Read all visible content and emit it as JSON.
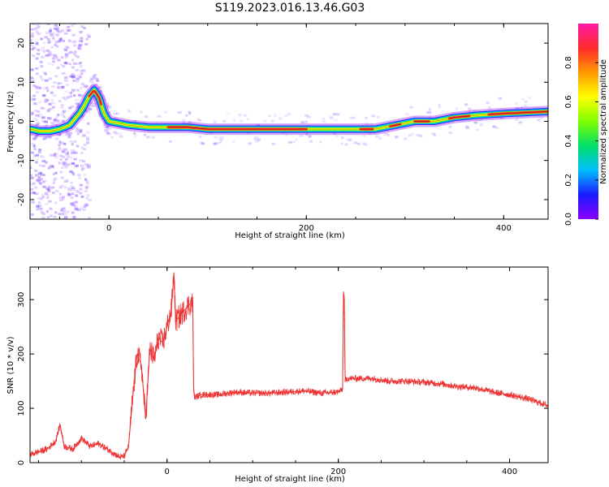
{
  "title": "S119.2023.016.13.46.G03",
  "colors": {
    "snr_line": "#ee3333",
    "axis": "#000000",
    "colormap": [
      "#8a00ff",
      "#1a1aff",
      "#00bfff",
      "#00e06a",
      "#7fff00",
      "#ffff00",
      "#ff9900",
      "#ff2a2a",
      "#ff1aa8"
    ]
  },
  "chart_data": [
    {
      "type": "heatmap",
      "xlabel": "Height of straight line (km)",
      "ylabel": "Frequency (Hz)",
      "xlim": [
        -80,
        445
      ],
      "ylim": [
        -25,
        25
      ],
      "xticks": [
        0,
        200,
        400
      ],
      "yticks": [
        -20,
        -10,
        0,
        10,
        20
      ],
      "grid": false,
      "ridge": {
        "x": [
          -80,
          -70,
          -60,
          -50,
          -40,
          -30,
          -25,
          -20,
          -15,
          -10,
          -5,
          0,
          20,
          40,
          60,
          80,
          100,
          150,
          200,
          220,
          250,
          270,
          290,
          310,
          330,
          350,
          370,
          400,
          445
        ],
        "y": [
          -2,
          -2.5,
          -2.5,
          -2,
          -1,
          2,
          4,
          6.5,
          8,
          6,
          2,
          0,
          -1,
          -1.5,
          -1.5,
          -1.5,
          -2,
          -2,
          -2,
          -2,
          -2,
          -2,
          -1,
          0,
          0,
          1,
          1.5,
          2,
          2.5
        ]
      },
      "colorbar": {
        "label": "Normalized spectral amplitude",
        "range": [
          0,
          1
        ],
        "ticks": [
          "0.0",
          "0.2",
          "0.4",
          "0.6",
          "0.8"
        ],
        "tick_values": [
          0,
          0.2,
          0.4,
          0.6,
          0.8
        ]
      }
    },
    {
      "type": "line",
      "xlabel": "Height of straight line (km)",
      "ylabel": "SNR (10 * v/v)",
      "xlim": [
        -160,
        445
      ],
      "ylim": [
        0,
        360
      ],
      "xticks": [
        0,
        200,
        400
      ],
      "yticks": [
        0,
        100,
        200,
        300
      ],
      "grid": false,
      "series": [
        {
          "x": [
            -160,
            -150,
            -140,
            -130,
            -125,
            -120,
            -110,
            -100,
            -90,
            -80,
            -70,
            -60,
            -55,
            -50,
            -45,
            -40,
            -35,
            -30,
            -25,
            -20,
            -15,
            -10,
            -5,
            0,
            5,
            8,
            10,
            15,
            20,
            25,
            30,
            31,
            32,
            40,
            60,
            80,
            100,
            120,
            140,
            160,
            180,
            200,
            205,
            206,
            207,
            208,
            210,
            220,
            240,
            260,
            280,
            300,
            320,
            340,
            360,
            380,
            400,
            420,
            445
          ],
          "y": [
            15,
            20,
            25,
            40,
            70,
            30,
            25,
            45,
            30,
            35,
            25,
            15,
            10,
            12,
            30,
            120,
            200,
            180,
            80,
            210,
            190,
            230,
            220,
            250,
            280,
            350,
            260,
            270,
            280,
            290,
            295,
            140,
            120,
            125,
            125,
            130,
            128,
            128,
            130,
            132,
            128,
            130,
            135,
            315,
            300,
            150,
            155,
            155,
            155,
            150,
            150,
            148,
            145,
            140,
            138,
            130,
            125,
            118,
            105
          ]
        }
      ]
    }
  ]
}
